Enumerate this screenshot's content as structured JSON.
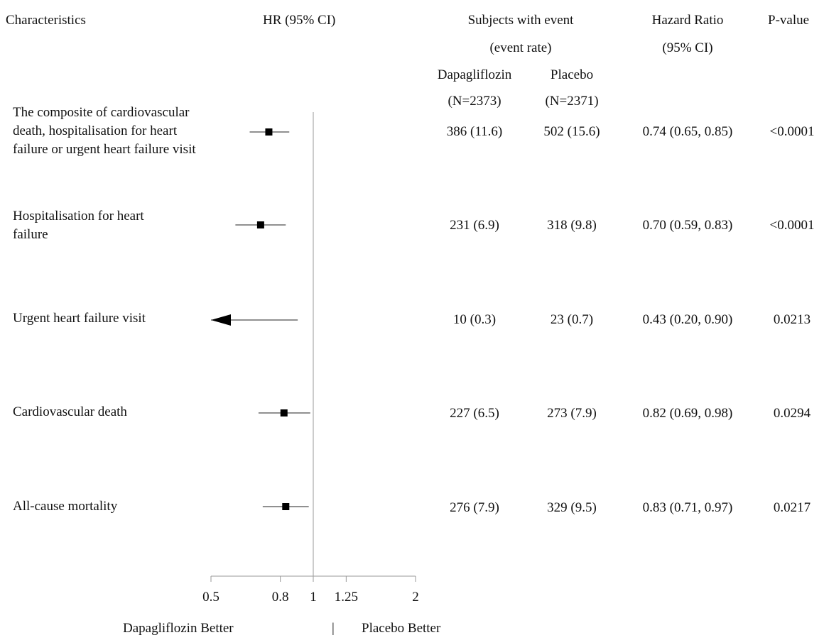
{
  "headers": {
    "characteristics": "Characteristics",
    "hr_ci": "HR (95% CI)",
    "subjects_line1": "Subjects with event",
    "subjects_line2": "(event rate)",
    "hazard_line1": "Hazard Ratio",
    "hazard_line2": "(95% CI)",
    "pvalue": "P-value",
    "dapa_name": "Dapagliflozin",
    "dapa_n": "(N=2373)",
    "placebo_name": "Placebo",
    "placebo_n": "(N=2371)"
  },
  "rows": [
    {
      "label": "The composite of cardiovascular\ndeath, hospitalisation for heart\nfailure or urgent heart failure visit",
      "dapa": "386 (11.6)",
      "placebo": "502 (15.6)",
      "hr": "0.74 (0.65, 0.85)",
      "p": "<0.0001"
    },
    {
      "label": "Hospitalisation for heart\nfailure",
      "dapa": "231 (6.9)",
      "placebo": "318 (9.8)",
      "hr": "0.70 (0.59, 0.83)",
      "p": "<0.0001"
    },
    {
      "label": "Urgent heart failure visit",
      "dapa": "10 (0.3)",
      "placebo": "23 (0.7)",
      "hr": "0.43 (0.20, 0.90)",
      "p": "0.0213"
    },
    {
      "label": "Cardiovascular death",
      "dapa": "227 (6.5)",
      "placebo": "273 (7.9)",
      "hr": "0.82 (0.69, 0.98)",
      "p": "0.0294"
    },
    {
      "label": "All-cause mortality",
      "dapa": "276 (7.9)",
      "placebo": "329 (9.5)",
      "hr": "0.83 (0.71, 0.97)",
      "p": "0.0217"
    }
  ],
  "footer": {
    "left": "Dapagliflozin Better",
    "right": "Placebo Better",
    "divider": "|"
  },
  "chart_data": {
    "type": "forest",
    "x_scale": "log",
    "xlim": [
      0.5,
      2
    ],
    "reference_line": 1,
    "xticks": [
      0.5,
      0.8,
      1,
      1.25,
      2
    ],
    "xtick_labels": [
      "0.5",
      "0.8",
      "1",
      "1.25",
      "2"
    ],
    "points": [
      {
        "hr": 0.74,
        "lower": 0.65,
        "upper": 0.85
      },
      {
        "hr": 0.7,
        "lower": 0.59,
        "upper": 0.83
      },
      {
        "hr": 0.43,
        "lower": 0.2,
        "upper": 0.9,
        "truncated_left": true
      },
      {
        "hr": 0.82,
        "lower": 0.69,
        "upper": 0.98
      },
      {
        "hr": 0.83,
        "lower": 0.71,
        "upper": 0.97
      }
    ]
  }
}
